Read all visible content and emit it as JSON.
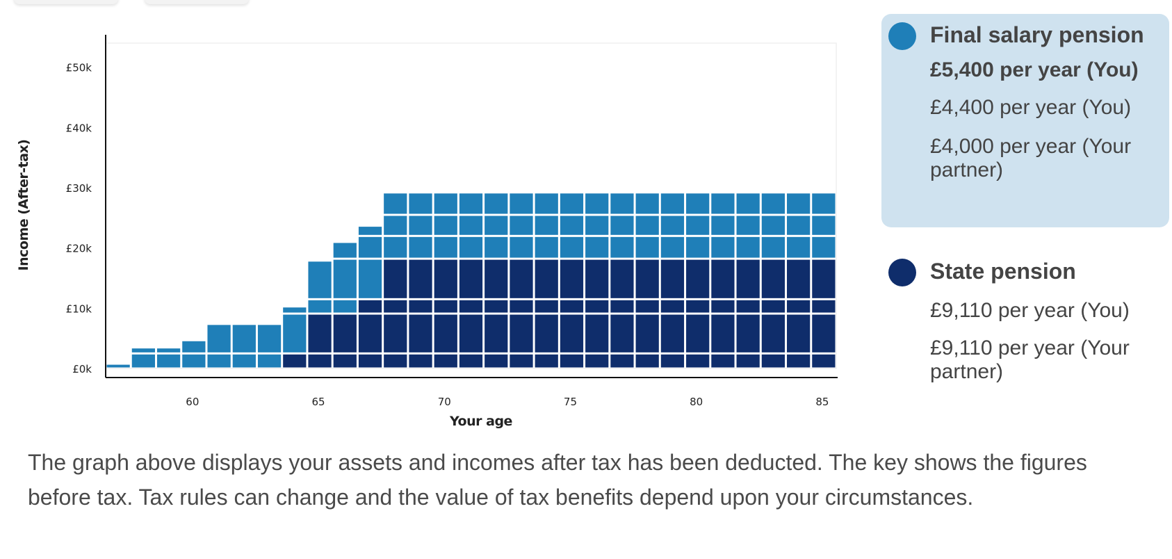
{
  "chart_data": {
    "type": "bar",
    "stacked": true,
    "x": [
      57,
      58,
      59,
      60,
      61,
      62,
      63,
      64,
      65,
      66,
      67,
      68,
      69,
      70,
      71,
      72,
      73,
      74,
      75,
      76,
      77,
      78,
      79,
      80,
      81,
      82,
      83,
      84,
      85
    ],
    "series": [
      {
        "key": "state",
        "color": "#0f2d6b",
        "values": [
          0,
          0,
          0,
          0,
          0,
          0,
          0,
          2500,
          9110,
          9110,
          11500,
          18220,
          18220,
          18220,
          18220,
          18220,
          18220,
          18220,
          18220,
          18220,
          18220,
          18220,
          18220,
          18220,
          18220,
          18220,
          18220,
          18220,
          18220
        ]
      },
      {
        "key": "final",
        "color": "#1f7fb8",
        "values": [
          800,
          3500,
          3500,
          4700,
          7400,
          7400,
          7400,
          7800,
          8800,
          11900,
          12200,
          11000,
          11000,
          11000,
          11000,
          11000,
          11000,
          11000,
          11000,
          11000,
          11000,
          11000,
          11000,
          11000,
          11000,
          11000,
          11000,
          11000,
          11000
        ]
      }
    ],
    "segment_bounds": [
      0,
      2500,
      9110,
      11500,
      18220,
      22000,
      25500
    ],
    "ylim": [
      0,
      54000
    ],
    "xlim": [
      56.5,
      85.5
    ],
    "yticks": [
      {
        "value": 0,
        "label": "£0k"
      },
      {
        "value": 10000,
        "label": "£10k"
      },
      {
        "value": 20000,
        "label": "£20k"
      },
      {
        "value": 30000,
        "label": "£30k"
      },
      {
        "value": 40000,
        "label": "£40k"
      },
      {
        "value": 50000,
        "label": "£50k"
      }
    ],
    "xticks": [
      {
        "value": 60,
        "label": "60"
      },
      {
        "value": 65,
        "label": "65"
      },
      {
        "value": 70,
        "label": "70"
      },
      {
        "value": 75,
        "label": "75"
      },
      {
        "value": 80,
        "label": "80"
      },
      {
        "value": 85,
        "label": "85"
      }
    ],
    "xlabel": "Your age",
    "ylabel": "Income (After-tax)",
    "grid": false,
    "legend_placement": "right"
  },
  "legend": {
    "final": {
      "title": "Final salary pension",
      "color": "#1f7fb8",
      "lines": [
        "£5,400 per year (You)",
        "£4,400 per year (You)",
        "£4,000 per year (Your partner)"
      ]
    },
    "state": {
      "title": "State pension",
      "color": "#0f2d6b",
      "lines": [
        "£9,110 per year (You)",
        "£9,110 per year (Your partner)"
      ]
    }
  },
  "note": "The graph above displays your assets and incomes after tax has been deducted. The key shows the figures before tax. Tax rules can change and the value of tax benefits depend upon your circumstances."
}
